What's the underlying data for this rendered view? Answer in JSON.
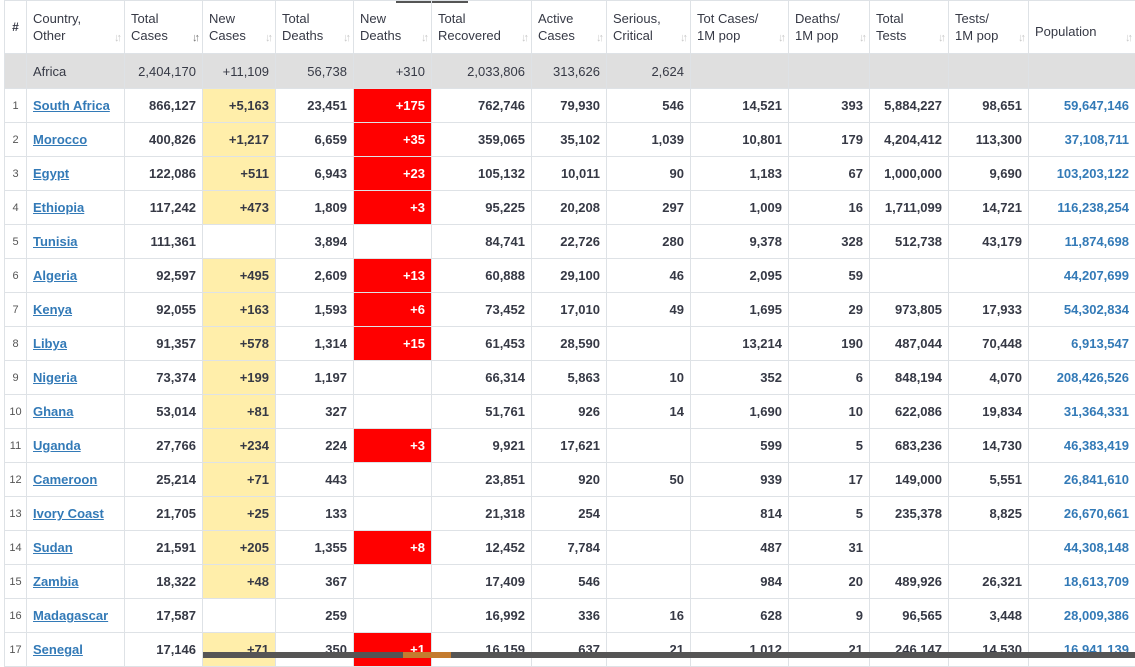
{
  "headers": [
    {
      "key": "rank",
      "line1": "#",
      "line2": ""
    },
    {
      "key": "country",
      "line1": "Country,",
      "line2": "Other"
    },
    {
      "key": "total_cases",
      "line1": "Total",
      "line2": "Cases"
    },
    {
      "key": "new_cases",
      "line1": "New",
      "line2": "Cases"
    },
    {
      "key": "total_deaths",
      "line1": "Total",
      "line2": "Deaths"
    },
    {
      "key": "new_deaths",
      "line1": "New",
      "line2": "Deaths"
    },
    {
      "key": "total_recovered",
      "line1": "Total",
      "line2": "Recovered"
    },
    {
      "key": "active_cases",
      "line1": "Active",
      "line2": "Cases"
    },
    {
      "key": "serious",
      "line1": "Serious,",
      "line2": "Critical"
    },
    {
      "key": "cases_per_1m",
      "line1": "Tot Cases/",
      "line2": "1M pop"
    },
    {
      "key": "deaths_per_1m",
      "line1": "Deaths/",
      "line2": "1M pop"
    },
    {
      "key": "total_tests",
      "line1": "Total",
      "line2": "Tests"
    },
    {
      "key": "tests_per_1m",
      "line1": "Tests/",
      "line2": "1M pop"
    },
    {
      "key": "population",
      "line1": "Population",
      "line2": ""
    }
  ],
  "sort_icon": "sort-arrows-icon",
  "region": {
    "name": "Africa",
    "total_cases": "2,404,170",
    "new_cases": "+11,109",
    "total_deaths": "56,738",
    "new_deaths": "+310",
    "total_recovered": "2,033,806",
    "active_cases": "313,626",
    "serious": "2,624",
    "cases_per_1m": "",
    "deaths_per_1m": "",
    "total_tests": "",
    "tests_per_1m": "",
    "population": ""
  },
  "rows": [
    {
      "rank": "1",
      "country": "South Africa",
      "total_cases": "866,127",
      "new_cases": "+5,163",
      "total_deaths": "23,451",
      "new_deaths": "+175",
      "total_recovered": "762,746",
      "active_cases": "79,930",
      "serious": "546",
      "cases_per_1m": "14,521",
      "deaths_per_1m": "393",
      "total_tests": "5,884,227",
      "tests_per_1m": "98,651",
      "population": "59,647,146"
    },
    {
      "rank": "2",
      "country": "Morocco",
      "total_cases": "400,826",
      "new_cases": "+1,217",
      "total_deaths": "6,659",
      "new_deaths": "+35",
      "total_recovered": "359,065",
      "active_cases": "35,102",
      "serious": "1,039",
      "cases_per_1m": "10,801",
      "deaths_per_1m": "179",
      "total_tests": "4,204,412",
      "tests_per_1m": "113,300",
      "population": "37,108,711"
    },
    {
      "rank": "3",
      "country": "Egypt",
      "total_cases": "122,086",
      "new_cases": "+511",
      "total_deaths": "6,943",
      "new_deaths": "+23",
      "total_recovered": "105,132",
      "active_cases": "10,011",
      "serious": "90",
      "cases_per_1m": "1,183",
      "deaths_per_1m": "67",
      "total_tests": "1,000,000",
      "tests_per_1m": "9,690",
      "population": "103,203,122"
    },
    {
      "rank": "4",
      "country": "Ethiopia",
      "total_cases": "117,242",
      "new_cases": "+473",
      "total_deaths": "1,809",
      "new_deaths": "+3",
      "total_recovered": "95,225",
      "active_cases": "20,208",
      "serious": "297",
      "cases_per_1m": "1,009",
      "deaths_per_1m": "16",
      "total_tests": "1,711,099",
      "tests_per_1m": "14,721",
      "population": "116,238,254"
    },
    {
      "rank": "5",
      "country": "Tunisia",
      "total_cases": "111,361",
      "new_cases": "",
      "total_deaths": "3,894",
      "new_deaths": "",
      "total_recovered": "84,741",
      "active_cases": "22,726",
      "serious": "280",
      "cases_per_1m": "9,378",
      "deaths_per_1m": "328",
      "total_tests": "512,738",
      "tests_per_1m": "43,179",
      "population": "11,874,698"
    },
    {
      "rank": "6",
      "country": "Algeria",
      "total_cases": "92,597",
      "new_cases": "+495",
      "total_deaths": "2,609",
      "new_deaths": "+13",
      "total_recovered": "60,888",
      "active_cases": "29,100",
      "serious": "46",
      "cases_per_1m": "2,095",
      "deaths_per_1m": "59",
      "total_tests": "",
      "tests_per_1m": "",
      "population": "44,207,699"
    },
    {
      "rank": "7",
      "country": "Kenya",
      "total_cases": "92,055",
      "new_cases": "+163",
      "total_deaths": "1,593",
      "new_deaths": "+6",
      "total_recovered": "73,452",
      "active_cases": "17,010",
      "serious": "49",
      "cases_per_1m": "1,695",
      "deaths_per_1m": "29",
      "total_tests": "973,805",
      "tests_per_1m": "17,933",
      "population": "54,302,834"
    },
    {
      "rank": "8",
      "country": "Libya",
      "total_cases": "91,357",
      "new_cases": "+578",
      "total_deaths": "1,314",
      "new_deaths": "+15",
      "total_recovered": "61,453",
      "active_cases": "28,590",
      "serious": "",
      "cases_per_1m": "13,214",
      "deaths_per_1m": "190",
      "total_tests": "487,044",
      "tests_per_1m": "70,448",
      "population": "6,913,547"
    },
    {
      "rank": "9",
      "country": "Nigeria",
      "total_cases": "73,374",
      "new_cases": "+199",
      "total_deaths": "1,197",
      "new_deaths": "",
      "total_recovered": "66,314",
      "active_cases": "5,863",
      "serious": "10",
      "cases_per_1m": "352",
      "deaths_per_1m": "6",
      "total_tests": "848,194",
      "tests_per_1m": "4,070",
      "population": "208,426,526"
    },
    {
      "rank": "10",
      "country": "Ghana",
      "total_cases": "53,014",
      "new_cases": "+81",
      "total_deaths": "327",
      "new_deaths": "",
      "total_recovered": "51,761",
      "active_cases": "926",
      "serious": "14",
      "cases_per_1m": "1,690",
      "deaths_per_1m": "10",
      "total_tests": "622,086",
      "tests_per_1m": "19,834",
      "population": "31,364,331"
    },
    {
      "rank": "11",
      "country": "Uganda",
      "total_cases": "27,766",
      "new_cases": "+234",
      "total_deaths": "224",
      "new_deaths": "+3",
      "total_recovered": "9,921",
      "active_cases": "17,621",
      "serious": "",
      "cases_per_1m": "599",
      "deaths_per_1m": "5",
      "total_tests": "683,236",
      "tests_per_1m": "14,730",
      "population": "46,383,419"
    },
    {
      "rank": "12",
      "country": "Cameroon",
      "total_cases": "25,214",
      "new_cases": "+71",
      "total_deaths": "443",
      "new_deaths": "",
      "total_recovered": "23,851",
      "active_cases": "920",
      "serious": "50",
      "cases_per_1m": "939",
      "deaths_per_1m": "17",
      "total_tests": "149,000",
      "tests_per_1m": "5,551",
      "population": "26,841,610"
    },
    {
      "rank": "13",
      "country": "Ivory Coast",
      "total_cases": "21,705",
      "new_cases": "+25",
      "total_deaths": "133",
      "new_deaths": "",
      "total_recovered": "21,318",
      "active_cases": "254",
      "serious": "",
      "cases_per_1m": "814",
      "deaths_per_1m": "5",
      "total_tests": "235,378",
      "tests_per_1m": "8,825",
      "population": "26,670,661"
    },
    {
      "rank": "14",
      "country": "Sudan",
      "total_cases": "21,591",
      "new_cases": "+205",
      "total_deaths": "1,355",
      "new_deaths": "+8",
      "total_recovered": "12,452",
      "active_cases": "7,784",
      "serious": "",
      "cases_per_1m": "487",
      "deaths_per_1m": "31",
      "total_tests": "",
      "tests_per_1m": "",
      "population": "44,308,148"
    },
    {
      "rank": "15",
      "country": "Zambia",
      "total_cases": "18,322",
      "new_cases": "+48",
      "total_deaths": "367",
      "new_deaths": "",
      "total_recovered": "17,409",
      "active_cases": "546",
      "serious": "",
      "cases_per_1m": "984",
      "deaths_per_1m": "20",
      "total_tests": "489,926",
      "tests_per_1m": "26,321",
      "population": "18,613,709"
    },
    {
      "rank": "16",
      "country": "Madagascar",
      "total_cases": "17,587",
      "new_cases": "",
      "total_deaths": "259",
      "new_deaths": "",
      "total_recovered": "16,992",
      "active_cases": "336",
      "serious": "16",
      "cases_per_1m": "628",
      "deaths_per_1m": "9",
      "total_tests": "96,565",
      "tests_per_1m": "3,448",
      "population": "28,009,386"
    },
    {
      "rank": "17",
      "country": "Senegal",
      "total_cases": "17,146",
      "new_cases": "+71",
      "total_deaths": "350",
      "new_deaths": "+1",
      "total_recovered": "16,159",
      "active_cases": "637",
      "serious": "21",
      "cases_per_1m": "1,012",
      "deaths_per_1m": "21",
      "total_tests": "246,147",
      "tests_per_1m": "14,530",
      "population": "16,941,139"
    }
  ]
}
